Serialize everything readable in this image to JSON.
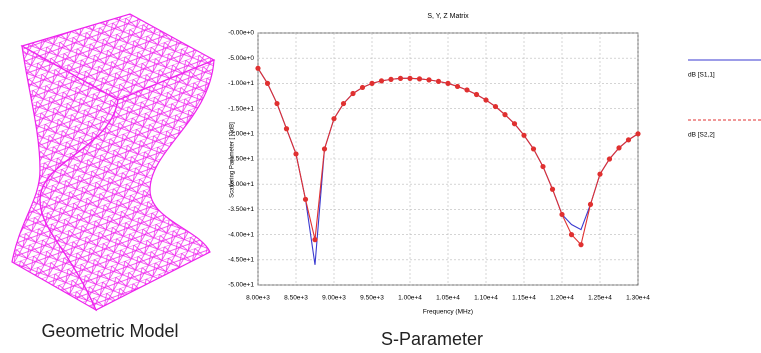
{
  "captions": {
    "model": "Geometric Model",
    "chart": "S-Parameter"
  },
  "chart_data": {
    "type": "line",
    "title": "S, Y, Z Matrix",
    "x_label": "Frequency (MHz)",
    "y_label": "Scattering Parameter [ ] [dB]",
    "x": [
      8000,
      8125,
      8250,
      8375,
      8500,
      8625,
      8750,
      8875,
      9000,
      9125,
      9250,
      9375,
      9500,
      9625,
      9750,
      9875,
      10000,
      10125,
      10250,
      10375,
      10500,
      10625,
      10750,
      10875,
      11000,
      11125,
      11250,
      11375,
      11500,
      11625,
      11750,
      11875,
      12000,
      12125,
      12250,
      12375,
      12500,
      12625,
      12750,
      12875,
      13000
    ],
    "series": [
      {
        "name": "dB [S1,1]",
        "color": "#3a3ad0",
        "markers": false,
        "values": [
          -7,
          -10,
          -14,
          -19,
          -24,
          -33,
          -46,
          -23,
          -17,
          -14,
          -12,
          -10.8,
          -10,
          -9.5,
          -9.2,
          -9,
          -9,
          -9.1,
          -9.3,
          -9.6,
          -10,
          -10.6,
          -11.3,
          -12.2,
          -13.3,
          -14.6,
          -16.2,
          -18,
          -20.3,
          -23,
          -26.5,
          -31,
          -36,
          -38,
          -39,
          -34,
          -28,
          -25,
          -22.8,
          -21.2,
          -20
        ]
      },
      {
        "name": "dB [S2,2]",
        "color": "#e03030",
        "markers": true,
        "values": [
          -7,
          -10,
          -14,
          -19,
          -24,
          -33,
          -41,
          -23,
          -17,
          -14,
          -12,
          -10.8,
          -10,
          -9.5,
          -9.2,
          -9,
          -9,
          -9.1,
          -9.3,
          -9.6,
          -10,
          -10.6,
          -11.3,
          -12.2,
          -13.3,
          -14.6,
          -16.2,
          -18,
          -20.3,
          -23,
          -26.5,
          -31,
          -36,
          -40,
          -42,
          -34,
          -28,
          -25,
          -22.8,
          -21.2,
          -20
        ]
      }
    ],
    "xlim": [
      8000,
      13000
    ],
    "ylim": [
      -50,
      0
    ],
    "xticks": [
      {
        "value": 8000,
        "label": "8.00e+3"
      },
      {
        "value": 8500,
        "label": "8.50e+3"
      },
      {
        "value": 9000,
        "label": "9.00e+3"
      },
      {
        "value": 9500,
        "label": "9.50e+3"
      },
      {
        "value": 10000,
        "label": "1.00e+4"
      },
      {
        "value": 10500,
        "label": "1.05e+4"
      },
      {
        "value": 11000,
        "label": "1.10e+4"
      },
      {
        "value": 11500,
        "label": "1.15e+4"
      },
      {
        "value": 12000,
        "label": "1.20e+4"
      },
      {
        "value": 12500,
        "label": "1.25e+4"
      },
      {
        "value": 13000,
        "label": "1.30e+4"
      }
    ],
    "yticks": [
      {
        "value": 0,
        "label": "-0.00e+0"
      },
      {
        "value": -5,
        "label": "-5.00e+0"
      },
      {
        "value": -10,
        "label": "-1.00e+1"
      },
      {
        "value": -15,
        "label": "-1.50e+1"
      },
      {
        "value": -20,
        "label": "-2.00e+1"
      },
      {
        "value": -25,
        "label": "-2.50e+1"
      },
      {
        "value": -30,
        "label": "-3.00e+1"
      },
      {
        "value": -35,
        "label": "-3.50e+1"
      },
      {
        "value": -40,
        "label": "-4.00e+1"
      },
      {
        "value": -45,
        "label": "-4.50e+1"
      },
      {
        "value": -50,
        "label": "-5.00e+1"
      }
    ],
    "grid": true,
    "legend": "right"
  }
}
